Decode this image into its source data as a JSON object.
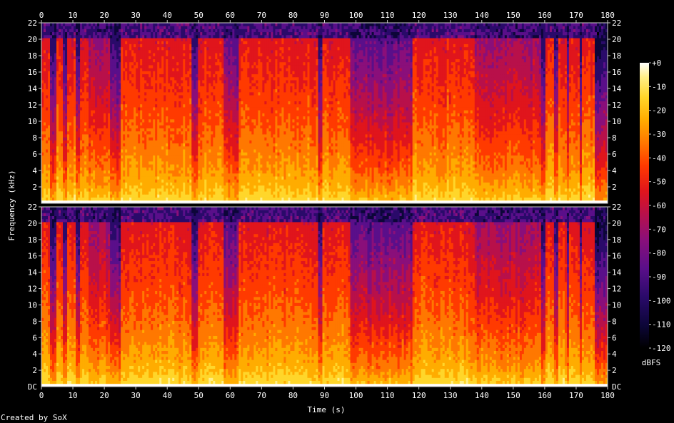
{
  "chart_data": {
    "type": "heatmap",
    "title": "",
    "xlabel": "Time (s)",
    "ylabel": "Frequency (kHz)",
    "xlim": [
      0,
      180
    ],
    "ylim": [
      0,
      22
    ],
    "x_ticks": [
      "0",
      "10",
      "20",
      "30",
      "40",
      "50",
      "60",
      "70",
      "80",
      "90",
      "100",
      "110",
      "120",
      "130",
      "140",
      "150",
      "160",
      "170",
      "180"
    ],
    "x_tick_values": [
      0,
      10,
      20,
      30,
      40,
      50,
      60,
      70,
      80,
      90,
      100,
      110,
      120,
      130,
      140,
      150,
      160,
      170,
      180
    ],
    "y_ticks": [
      "2",
      "4",
      "6",
      "8",
      "10",
      "12",
      "14",
      "16",
      "18",
      "20",
      "22"
    ],
    "y_tick_values": [
      2,
      4,
      6,
      8,
      10,
      12,
      14,
      16,
      18,
      20,
      22
    ],
    "bottom_tick_label": "DC",
    "channels": 2,
    "colorbar": {
      "label": "dBFS",
      "ticks": [
        "+0",
        "-10",
        "-20",
        "-30",
        "-40",
        "-50",
        "-60",
        "-70",
        "-80",
        "-90",
        "-100",
        "-110",
        "-120"
      ],
      "tick_values": [
        0,
        -10,
        -20,
        -30,
        -40,
        -50,
        -60,
        -70,
        -80,
        -90,
        -100,
        -110,
        -120
      ],
      "range": [
        -120,
        0
      ]
    },
    "spectral_profile": {
      "description_units": "estimated top-of-spectrum cutoff in kHz over time (s)",
      "cutoff_khz": 20,
      "segments": [
        {
          "t": [
            0,
            3
          ],
          "level": "loud"
        },
        {
          "t": [
            3,
            4.5
          ],
          "level": "dip"
        },
        {
          "t": [
            4.5,
            7
          ],
          "level": "loud"
        },
        {
          "t": [
            7,
            8
          ],
          "level": "dip"
        },
        {
          "t": [
            8,
            11
          ],
          "level": "loud"
        },
        {
          "t": [
            11,
            12
          ],
          "level": "dip"
        },
        {
          "t": [
            12,
            15
          ],
          "level": "loud"
        },
        {
          "t": [
            15,
            22
          ],
          "level": "medium"
        },
        {
          "t": [
            22,
            25
          ],
          "level": "dip"
        },
        {
          "t": [
            25,
            48
          ],
          "level": "loud"
        },
        {
          "t": [
            48,
            49.5
          ],
          "level": "dip"
        },
        {
          "t": [
            49.5,
            58
          ],
          "level": "loud"
        },
        {
          "t": [
            58,
            63
          ],
          "level": "quiet"
        },
        {
          "t": [
            63,
            88
          ],
          "level": "loud"
        },
        {
          "t": [
            88,
            89.5
          ],
          "level": "dip"
        },
        {
          "t": [
            89.5,
            98
          ],
          "level": "loud"
        },
        {
          "t": [
            98,
            118
          ],
          "level": "quiet"
        },
        {
          "t": [
            118,
            138
          ],
          "level": "loud"
        },
        {
          "t": [
            138,
            159
          ],
          "level": "medium"
        },
        {
          "t": [
            159,
            160.5
          ],
          "level": "dip"
        },
        {
          "t": [
            160.5,
            163
          ],
          "level": "loud"
        },
        {
          "t": [
            163,
            164.5
          ],
          "level": "dip"
        },
        {
          "t": [
            164.5,
            167
          ],
          "level": "loud"
        },
        {
          "t": [
            167,
            168
          ],
          "level": "dip"
        },
        {
          "t": [
            168,
            171
          ],
          "level": "loud"
        },
        {
          "t": [
            171,
            172
          ],
          "level": "dip"
        },
        {
          "t": [
            172,
            176
          ],
          "level": "loud"
        },
        {
          "t": [
            176,
            180
          ],
          "level": "fade"
        }
      ]
    }
  },
  "footer": {
    "credit": "Created by SoX"
  },
  "colors": {
    "background": "#000000",
    "text": "#ffffff",
    "axis": "#c8c8c8",
    "palette": [
      "#000000",
      "#0c0638",
      "#2a0a6a",
      "#5a0f8a",
      "#8a0f7a",
      "#b8104a",
      "#e0151c",
      "#ff3a00",
      "#ff7800",
      "#ffac00",
      "#ffd62a",
      "#ffef88",
      "#ffffff"
    ]
  }
}
